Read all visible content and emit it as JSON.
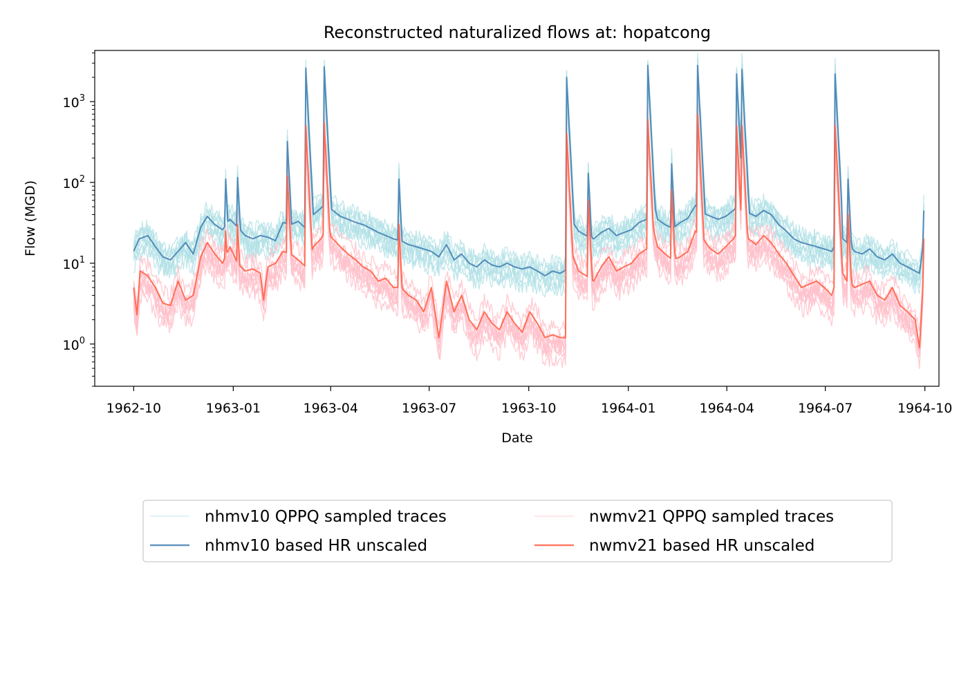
{
  "chart_data": {
    "type": "line",
    "title": "Reconstructed naturalized flows at: hopatcong",
    "xlabel": "Date",
    "ylabel": "Flow (MGD)",
    "xlim": [
      "1962-08-26",
      "1964-10-14"
    ],
    "x_ticks": [
      "1962-10",
      "1963-01",
      "1963-04",
      "1963-07",
      "1963-10",
      "1964-01",
      "1964-04",
      "1964-07",
      "1964-10"
    ],
    "x_tick_dates": [
      "1962-10-01",
      "1963-01-01",
      "1963-04-01",
      "1963-07-01",
      "1963-10-01",
      "1964-01-01",
      "1964-04-01",
      "1964-07-01",
      "1964-10-01"
    ],
    "y_scale": "log",
    "ylim": [
      0.3,
      4300
    ],
    "y_ticks": [
      1,
      10,
      100,
      1000
    ],
    "y_tick_labels": [
      {
        "base": "10",
        "exp": "0"
      },
      {
        "base": "10",
        "exp": "1"
      },
      {
        "base": "10",
        "exp": "2"
      },
      {
        "base": "10",
        "exp": "3"
      }
    ],
    "grid": false,
    "legend_position": "below plot, centered, two columns",
    "legend": [
      {
        "label": "nhmv10 QPPQ sampled traces",
        "color": "#b0e0e6",
        "opacity": 0.35
      },
      {
        "label": "nhmv10 based HR unscaled",
        "color": "#4682b4",
        "opacity": 0.85
      },
      {
        "label": "nwmv21 QPPQ sampled traces",
        "color": "#ffc0cb",
        "opacity": 0.35
      },
      {
        "label": "nwmv21 based HR unscaled",
        "color": "#ff6347",
        "opacity": 0.85
      }
    ],
    "series": [
      {
        "name": "nhmv10 based HR unscaled",
        "color": "#4682b4",
        "points": [
          [
            "1962-10-01",
            14
          ],
          [
            "1962-10-06",
            20
          ],
          [
            "1962-10-14",
            22
          ],
          [
            "1962-10-21",
            16
          ],
          [
            "1962-10-28",
            12
          ],
          [
            "1962-11-04",
            11
          ],
          [
            "1962-11-11",
            14
          ],
          [
            "1962-11-18",
            18
          ],
          [
            "1962-11-25",
            13
          ],
          [
            "1962-12-02",
            28
          ],
          [
            "1962-12-08",
            38
          ],
          [
            "1962-12-15",
            30
          ],
          [
            "1962-12-22",
            26
          ],
          [
            "1962-12-29",
            35
          ],
          [
            "1963-01-05",
            28
          ],
          [
            "1963-01-12",
            22
          ],
          [
            "1963-01-19",
            20
          ],
          [
            "1963-01-26",
            22
          ],
          [
            "1963-02-02",
            21
          ],
          [
            "1963-02-09",
            19
          ],
          [
            "1963-02-16",
            32
          ],
          [
            "1963-02-23",
            30
          ],
          [
            "1963-03-02",
            33
          ],
          [
            "1963-03-09",
            27
          ],
          [
            "1963-03-16",
            40
          ],
          [
            "1963-03-23",
            48
          ],
          [
            "1963-03-27",
            55
          ],
          [
            "1963-04-03",
            45
          ],
          [
            "1963-04-10",
            38
          ],
          [
            "1963-04-17",
            35
          ],
          [
            "1963-04-24",
            32
          ],
          [
            "1963-05-01",
            30
          ],
          [
            "1963-05-08",
            27
          ],
          [
            "1963-05-15",
            24
          ],
          [
            "1963-05-22",
            22
          ],
          [
            "1963-05-29",
            20
          ],
          [
            "1963-06-05",
            19
          ],
          [
            "1963-06-12",
            17
          ],
          [
            "1963-06-19",
            16
          ],
          [
            "1963-06-26",
            15
          ],
          [
            "1963-07-03",
            14
          ],
          [
            "1963-07-10",
            12
          ],
          [
            "1963-07-17",
            17
          ],
          [
            "1963-07-24",
            11
          ],
          [
            "1963-07-31",
            13
          ],
          [
            "1963-08-07",
            10
          ],
          [
            "1963-08-14",
            9
          ],
          [
            "1963-08-21",
            11
          ],
          [
            "1963-08-28",
            9.5
          ],
          [
            "1963-09-04",
            9
          ],
          [
            "1963-09-11",
            10
          ],
          [
            "1963-09-18",
            9
          ],
          [
            "1963-09-25",
            8.5
          ],
          [
            "1963-10-02",
            9
          ],
          [
            "1963-10-09",
            8
          ],
          [
            "1963-10-16",
            7
          ],
          [
            "1963-10-23",
            8
          ],
          [
            "1963-10-30",
            7.5
          ],
          [
            "1963-11-06",
            8.5
          ],
          [
            "1963-11-09",
            35
          ],
          [
            "1963-11-16",
            25
          ],
          [
            "1963-11-23",
            22
          ],
          [
            "1963-11-30",
            20
          ],
          [
            "1963-12-07",
            24
          ],
          [
            "1963-12-14",
            27
          ],
          [
            "1963-12-21",
            22
          ],
          [
            "1963-12-28",
            24
          ],
          [
            "1964-01-04",
            26
          ],
          [
            "1964-01-11",
            32
          ],
          [
            "1964-01-18",
            35
          ],
          [
            "1964-01-21",
            98
          ],
          [
            "1964-01-28",
            35
          ],
          [
            "1964-02-04",
            30
          ],
          [
            "1964-02-11",
            27
          ],
          [
            "1964-02-18",
            32
          ],
          [
            "1964-02-25",
            36
          ],
          [
            "1964-03-03",
            52
          ],
          [
            "1964-03-10",
            42
          ],
          [
            "1964-03-17",
            38
          ],
          [
            "1964-03-24",
            35
          ],
          [
            "1964-03-31",
            38
          ],
          [
            "1964-04-07",
            45
          ],
          [
            "1964-04-14",
            55
          ],
          [
            "1964-04-21",
            42
          ],
          [
            "1964-04-28",
            38
          ],
          [
            "1964-05-05",
            45
          ],
          [
            "1964-05-12",
            40
          ],
          [
            "1964-05-19",
            30
          ],
          [
            "1964-05-26",
            25
          ],
          [
            "1964-06-02",
            20
          ],
          [
            "1964-06-09",
            18
          ],
          [
            "1964-06-16",
            17
          ],
          [
            "1964-06-23",
            16
          ],
          [
            "1964-06-30",
            15
          ],
          [
            "1964-07-07",
            14
          ],
          [
            "1964-07-14",
            22
          ],
          [
            "1964-07-21",
            18
          ],
          [
            "1964-07-28",
            14
          ],
          [
            "1964-08-04",
            13
          ],
          [
            "1964-08-11",
            15
          ],
          [
            "1964-08-18",
            12
          ],
          [
            "1964-08-25",
            11
          ],
          [
            "1964-09-01",
            13
          ],
          [
            "1964-09-08",
            10
          ],
          [
            "1964-09-15",
            9
          ],
          [
            "1964-09-22",
            8
          ],
          [
            "1964-09-26",
            7.5
          ],
          [
            "1964-09-30",
            20
          ]
        ]
      },
      {
        "name": "nwmv21 based HR unscaled",
        "color": "#ff6347",
        "points": [
          [
            "1962-10-01",
            5
          ],
          [
            "1962-10-04",
            2.3
          ],
          [
            "1962-10-07",
            8
          ],
          [
            "1962-10-14",
            7
          ],
          [
            "1962-10-21",
            5
          ],
          [
            "1962-10-28",
            3.2
          ],
          [
            "1962-11-04",
            3
          ],
          [
            "1962-11-11",
            6
          ],
          [
            "1962-11-18",
            3.5
          ],
          [
            "1962-11-25",
            4
          ],
          [
            "1962-12-02",
            12
          ],
          [
            "1962-12-08",
            18
          ],
          [
            "1962-12-15",
            13
          ],
          [
            "1962-12-22",
            10
          ],
          [
            "1962-12-29",
            16
          ],
          [
            "1963-01-05",
            10
          ],
          [
            "1963-01-12",
            8
          ],
          [
            "1963-01-19",
            8.5
          ],
          [
            "1963-01-26",
            7.5
          ],
          [
            "1963-01-29",
            3.5
          ],
          [
            "1963-02-02",
            9
          ],
          [
            "1963-02-09",
            10
          ],
          [
            "1963-02-16",
            14
          ],
          [
            "1963-02-23",
            13
          ],
          [
            "1963-03-02",
            11
          ],
          [
            "1963-03-09",
            9
          ],
          [
            "1963-03-16",
            16
          ],
          [
            "1963-03-23",
            20
          ],
          [
            "1963-03-27",
            25
          ],
          [
            "1963-04-03",
            20
          ],
          [
            "1963-04-10",
            16
          ],
          [
            "1963-04-17",
            13
          ],
          [
            "1963-04-24",
            11
          ],
          [
            "1963-05-01",
            9
          ],
          [
            "1963-05-08",
            8
          ],
          [
            "1963-05-15",
            6
          ],
          [
            "1963-05-22",
            6.5
          ],
          [
            "1963-05-29",
            5
          ],
          [
            "1963-06-05",
            5
          ],
          [
            "1963-06-12",
            4
          ],
          [
            "1963-06-19",
            3.5
          ],
          [
            "1963-06-26",
            2.5
          ],
          [
            "1963-07-03",
            5
          ],
          [
            "1963-07-10",
            1.2
          ],
          [
            "1963-07-17",
            6
          ],
          [
            "1963-07-24",
            2.5
          ],
          [
            "1963-07-31",
            4
          ],
          [
            "1963-08-07",
            2
          ],
          [
            "1963-08-14",
            1.5
          ],
          [
            "1963-08-21",
            2.5
          ],
          [
            "1963-08-28",
            1.8
          ],
          [
            "1963-09-04",
            1.5
          ],
          [
            "1963-09-11",
            2.5
          ],
          [
            "1963-09-18",
            1.8
          ],
          [
            "1963-09-25",
            1.4
          ],
          [
            "1963-10-02",
            2.5
          ],
          [
            "1963-10-09",
            1.8
          ],
          [
            "1963-10-16",
            1.2
          ],
          [
            "1963-10-23",
            1.3
          ],
          [
            "1963-10-30",
            1.2
          ],
          [
            "1963-11-06",
            1.2
          ],
          [
            "1963-11-09",
            14
          ],
          [
            "1963-11-16",
            8
          ],
          [
            "1963-11-23",
            7
          ],
          [
            "1963-11-30",
            6
          ],
          [
            "1963-12-07",
            9
          ],
          [
            "1963-12-14",
            12
          ],
          [
            "1963-12-21",
            8
          ],
          [
            "1963-12-28",
            9
          ],
          [
            "1964-01-04",
            10
          ],
          [
            "1964-01-11",
            13
          ],
          [
            "1964-01-18",
            15
          ],
          [
            "1964-01-21",
            40
          ],
          [
            "1964-01-28",
            16
          ],
          [
            "1964-02-04",
            13
          ],
          [
            "1964-02-11",
            11
          ],
          [
            "1964-02-18",
            12
          ],
          [
            "1964-02-25",
            14
          ],
          [
            "1964-03-03",
            25
          ],
          [
            "1964-03-10",
            20
          ],
          [
            "1964-03-17",
            15
          ],
          [
            "1964-03-24",
            13
          ],
          [
            "1964-03-31",
            16
          ],
          [
            "1964-04-07",
            20
          ],
          [
            "1964-04-14",
            28
          ],
          [
            "1964-04-21",
            20
          ],
          [
            "1964-04-28",
            17
          ],
          [
            "1964-05-05",
            22
          ],
          [
            "1964-05-12",
            18
          ],
          [
            "1964-05-19",
            13
          ],
          [
            "1964-05-26",
            10
          ],
          [
            "1964-06-02",
            7
          ],
          [
            "1964-06-09",
            5
          ],
          [
            "1964-06-16",
            5.5
          ],
          [
            "1964-06-23",
            6
          ],
          [
            "1964-06-30",
            5
          ],
          [
            "1964-07-07",
            4
          ],
          [
            "1964-07-14",
            9
          ],
          [
            "1964-07-21",
            6
          ],
          [
            "1964-07-28",
            5
          ],
          [
            "1964-08-04",
            5.5
          ],
          [
            "1964-08-11",
            6
          ],
          [
            "1964-08-18",
            4
          ],
          [
            "1964-08-25",
            3.5
          ],
          [
            "1964-09-01",
            5
          ],
          [
            "1964-09-08",
            3
          ],
          [
            "1964-09-15",
            2.5
          ],
          [
            "1964-09-22",
            2
          ],
          [
            "1964-09-26",
            0.9
          ],
          [
            "1964-09-30",
            8
          ]
        ]
      }
    ],
    "peaks": [
      {
        "date": "1962-12-25",
        "nhmv10": 110,
        "nwmv21": 25
      },
      {
        "date": "1963-01-05",
        "nhmv10": 115,
        "nwmv21": 30
      },
      {
        "date": "1963-02-20",
        "nhmv10": 320,
        "nwmv21": 120
      },
      {
        "date": "1963-03-09",
        "nhmv10": 2600,
        "nwmv21": 500
      },
      {
        "date": "1963-03-26",
        "nhmv10": 2700,
        "nwmv21": 550
      },
      {
        "date": "1963-06-03",
        "nhmv10": 110,
        "nwmv21": 30
      },
      {
        "date": "1963-11-05",
        "nhmv10": 2000,
        "nwmv21": 400
      },
      {
        "date": "1963-11-25",
        "nhmv10": 130,
        "nwmv21": 60
      },
      {
        "date": "1964-01-19",
        "nhmv10": 2800,
        "nwmv21": 600
      },
      {
        "date": "1964-02-10",
        "nhmv10": 170,
        "nwmv21": 80
      },
      {
        "date": "1964-03-05",
        "nhmv10": 2800,
        "nwmv21": 700
      },
      {
        "date": "1964-04-10",
        "nhmv10": 2200,
        "nwmv21": 500
      },
      {
        "date": "1964-04-15",
        "nhmv10": 2500,
        "nwmv21": 500
      },
      {
        "date": "1964-07-10",
        "nhmv10": 2200,
        "nwmv21": 500
      },
      {
        "date": "1964-07-22",
        "nhmv10": 110,
        "nwmv21": 40
      },
      {
        "date": "1964-09-30",
        "nhmv10": 45,
        "nwmv21": 20
      }
    ],
    "trace_band": {
      "nhmv10": {
        "factor_low": 0.6,
        "factor_high": 1.4,
        "traces": 9
      },
      "nwmv21": {
        "factor_low": 0.35,
        "factor_high": 1.5,
        "floor": 0.45,
        "traces": 9
      }
    }
  }
}
